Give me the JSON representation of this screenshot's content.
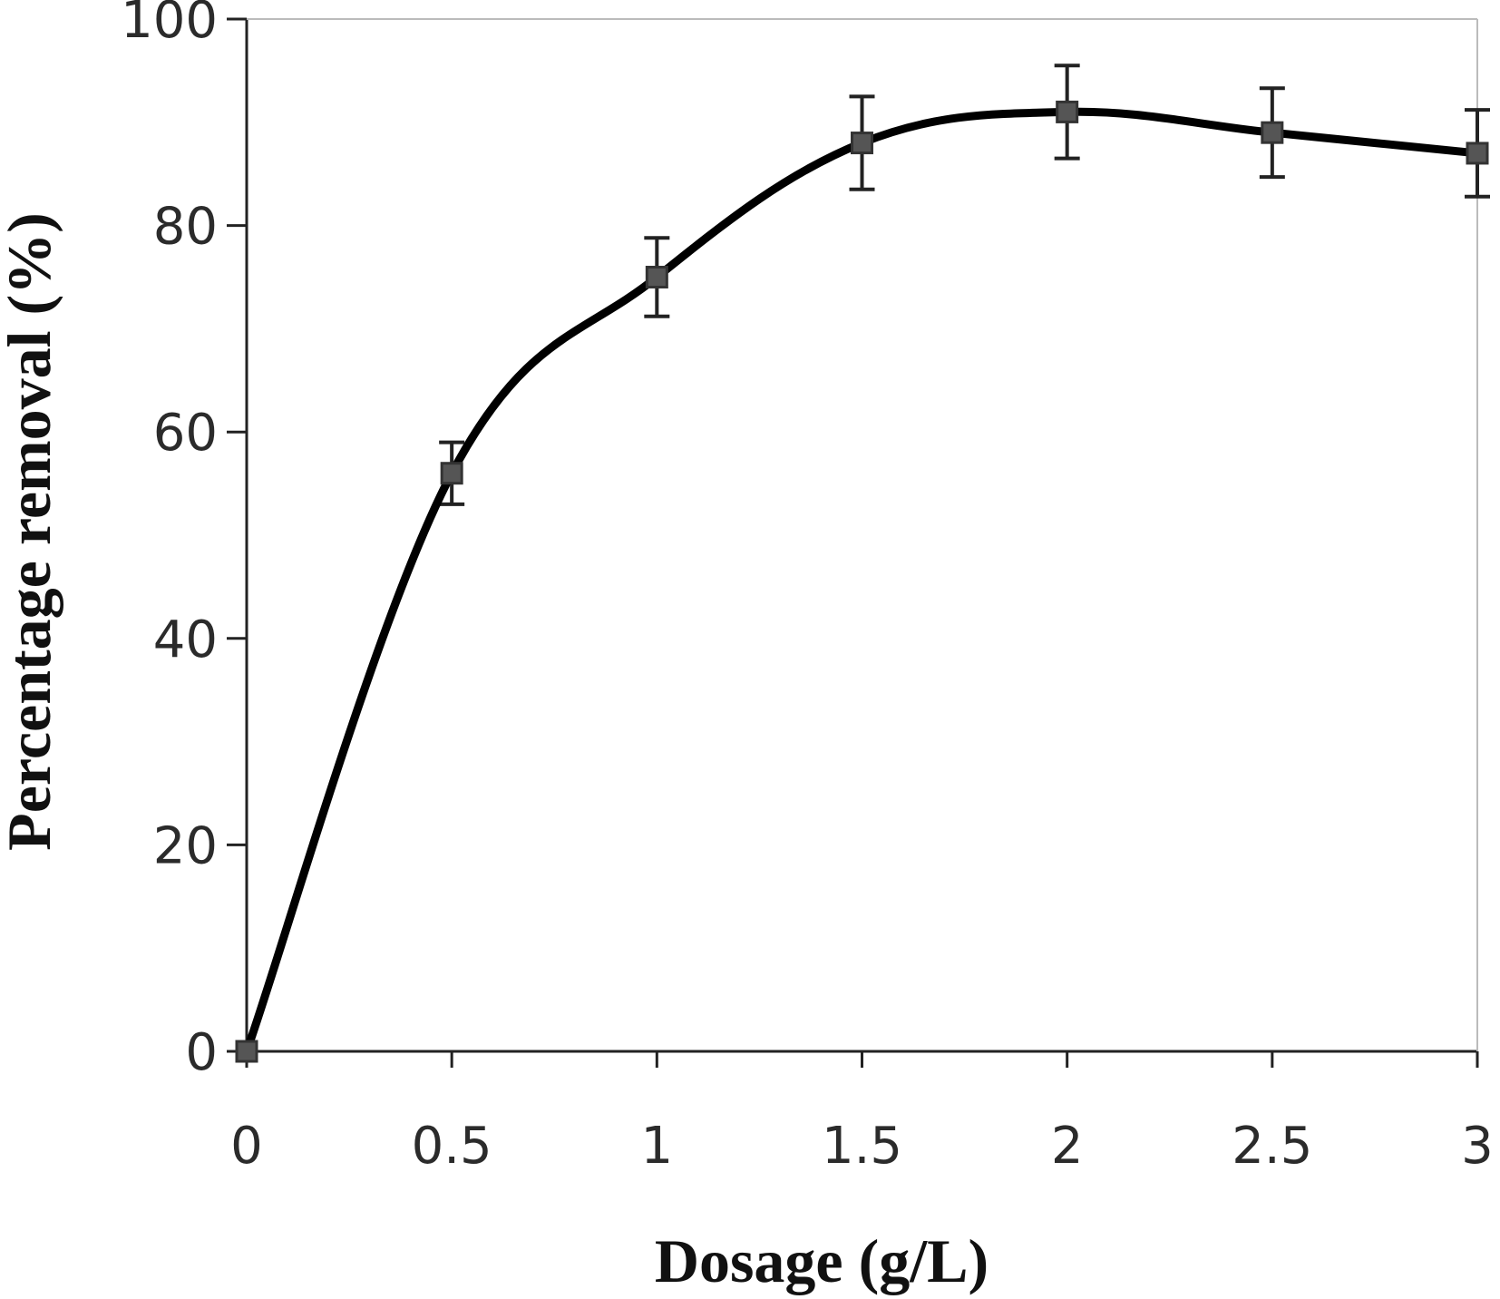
{
  "chart_data": {
    "type": "line",
    "title": "",
    "xlabel": "Dosage (g/L)",
    "ylabel": "Percentage removal (%)",
    "xlim": [
      0,
      3
    ],
    "ylim": [
      0,
      100
    ],
    "x_ticks": [
      "0",
      "0.5",
      "1",
      "1.5",
      "2",
      "2.5",
      "3"
    ],
    "y_ticks": [
      "0",
      "20",
      "40",
      "60",
      "80",
      "100"
    ],
    "grid": false,
    "legend": "none",
    "series": [
      {
        "x": [
          0,
          0.5,
          1,
          1.5,
          2,
          2.5,
          3
        ],
        "y": [
          0,
          56,
          75,
          88,
          91,
          89,
          87
        ],
        "error": [
          0,
          3,
          3.8,
          4.5,
          4.5,
          4.3,
          4.2
        ],
        "marker": "square",
        "color": "#000000"
      }
    ]
  }
}
